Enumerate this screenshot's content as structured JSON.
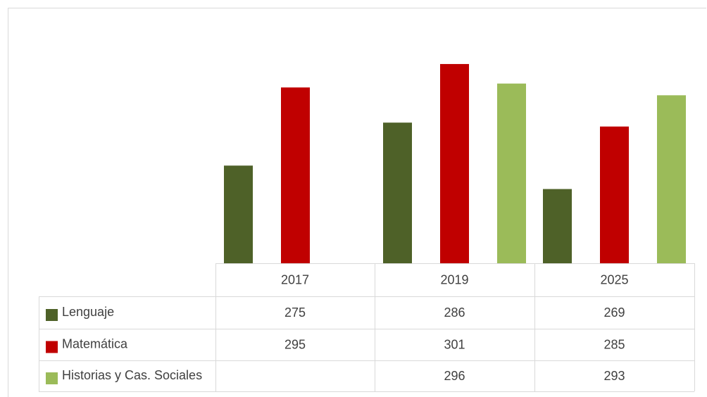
{
  "chart_data": {
    "type": "bar",
    "categories": [
      "2017",
      "2019",
      "2025"
    ],
    "series": [
      {
        "name": "Lenguaje",
        "color": "#4e6128",
        "values": [
          275,
          286,
          269
        ]
      },
      {
        "name": "Matemática",
        "color": "#c00000",
        "values": [
          295,
          301,
          285
        ]
      },
      {
        "name": "Historias y Cas. Sociales",
        "color": "#9bbb59",
        "values": [
          null,
          296,
          293
        ]
      }
    ],
    "title": "",
    "xlabel": "",
    "ylabel": "",
    "ylim": [
      250,
      305
    ],
    "grid": false,
    "legend": "data-table"
  }
}
